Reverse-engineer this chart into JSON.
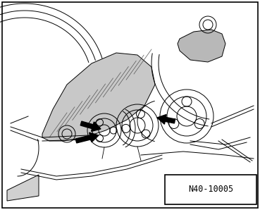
{
  "background_color": "#ffffff",
  "border_color": "#000000",
  "label_text": "N40-10005",
  "label_fontsize": 8.5,
  "fig_width": 3.69,
  "fig_height": 2.98,
  "dpi": 100,
  "image_b64": ""
}
